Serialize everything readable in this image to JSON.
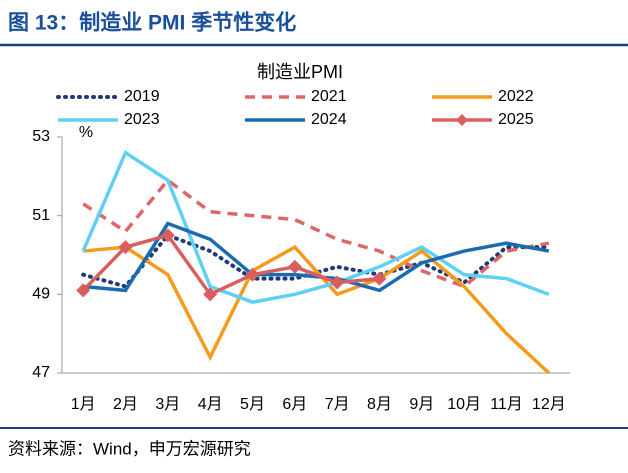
{
  "figure_title": "图 13：制造业 PMI 季节性变化",
  "source": "资料来源：Wind，申万宏源研究",
  "chart_data": {
    "type": "line",
    "title": "制造业PMI",
    "y_unit": "%",
    "categories": [
      "1月",
      "2月",
      "3月",
      "4月",
      "5月",
      "6月",
      "7月",
      "8月",
      "9月",
      "10月",
      "11月",
      "12月"
    ],
    "ylim": [
      47,
      53
    ],
    "yticks": [
      47,
      49,
      51,
      53
    ],
    "grid": false,
    "series": [
      {
        "name": "2019",
        "color": "#1f3a7a",
        "style": "dotted",
        "values": [
          49.5,
          49.2,
          50.5,
          50.1,
          49.4,
          49.4,
          49.7,
          49.5,
          49.8,
          49.3,
          50.2,
          50.2
        ]
      },
      {
        "name": "2021",
        "color": "#e06666",
        "style": "dashed",
        "values": [
          51.3,
          50.6,
          51.9,
          51.1,
          51.0,
          50.9,
          50.4,
          50.1,
          49.6,
          49.2,
          50.1,
          50.3
        ]
      },
      {
        "name": "2022",
        "color": "#f59a1b",
        "style": "solid",
        "values": [
          50.1,
          50.2,
          49.5,
          47.4,
          49.6,
          50.2,
          49.0,
          49.4,
          50.1,
          49.2,
          48.0,
          47.0
        ]
      },
      {
        "name": "2023",
        "color": "#5ed0f5",
        "style": "solid",
        "values": [
          50.1,
          52.6,
          51.9,
          49.2,
          48.8,
          49.0,
          49.3,
          49.7,
          50.2,
          49.5,
          49.4,
          49.0
        ]
      },
      {
        "name": "2024",
        "color": "#1a6bb0",
        "style": "solid",
        "values": [
          49.2,
          49.1,
          50.8,
          50.4,
          49.5,
          49.5,
          49.4,
          49.1,
          49.8,
          50.1,
          50.3,
          50.1
        ]
      },
      {
        "name": "2025",
        "color": "#d95f5f",
        "style": "solid",
        "marker": "diamond",
        "values": [
          49.1,
          50.2,
          50.5,
          49.0,
          49.5,
          49.7,
          49.3,
          49.4,
          null,
          null,
          null,
          null
        ]
      }
    ]
  }
}
